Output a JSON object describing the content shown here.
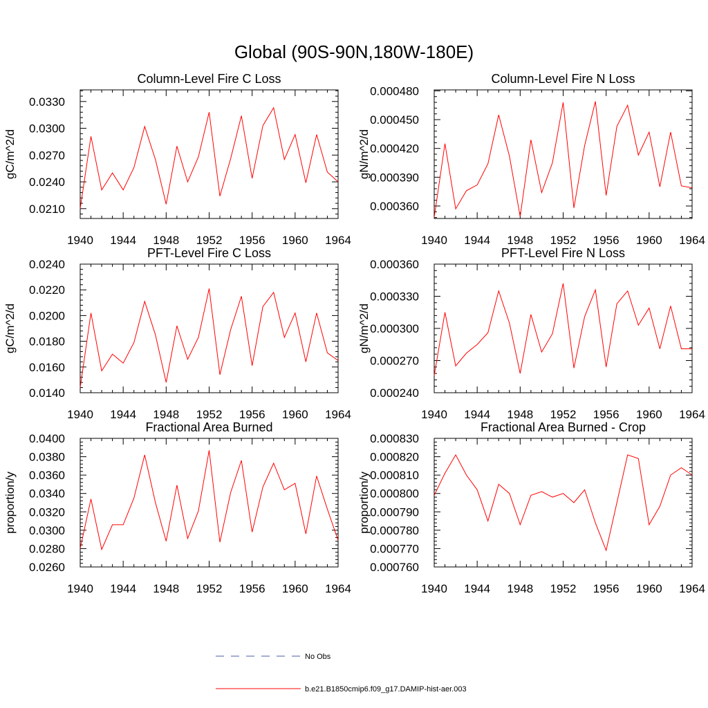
{
  "figure": {
    "title": "Global (90S-90N,180W-180E)"
  },
  "legend": {
    "entries": [
      {
        "label": "No Obs",
        "color": "#4a5ba8",
        "style": "dashed"
      },
      {
        "label": "b.e21.B1850cmip6.f09_g17.DAMIP-hist-aer.003",
        "color": "#ff0000",
        "style": "solid"
      }
    ]
  },
  "chart_data": [
    {
      "type": "line",
      "title": "Column-Level Fire C Loss",
      "ylabel": "gC/m^2/d",
      "xlim": [
        1940,
        1964
      ],
      "ylim": [
        0.0199,
        0.0343
      ],
      "xticks": [
        1940,
        1944,
        1948,
        1952,
        1956,
        1960,
        1964
      ],
      "yticks": [
        0.021,
        0.024,
        0.027,
        0.03,
        0.033
      ],
      "ytick_labels": [
        "0.0210",
        "0.0240",
        "0.0270",
        "0.0300",
        "0.0330"
      ],
      "x": [
        1940,
        1941,
        1942,
        1943,
        1944,
        1945,
        1946,
        1947,
        1948,
        1949,
        1950,
        1951,
        1952,
        1953,
        1954,
        1955,
        1956,
        1957,
        1958,
        1959,
        1960,
        1961,
        1962,
        1963,
        1964
      ],
      "series": [
        {
          "name": "b.e21.B1850cmip6.f09_g17.DAMIP-hist-aer.003",
          "color": "#ff0000",
          "values": [
            0.021,
            0.0291,
            0.0231,
            0.025,
            0.0231,
            0.0256,
            0.0302,
            0.0265,
            0.0215,
            0.028,
            0.024,
            0.0268,
            0.0318,
            0.0224,
            0.0266,
            0.0314,
            0.0244,
            0.0303,
            0.0323,
            0.0265,
            0.0293,
            0.0239,
            0.0293,
            0.0251,
            0.024
          ]
        }
      ]
    },
    {
      "type": "line",
      "title": "Column-Level Fire N Loss",
      "ylabel": "gN/m^2/d",
      "xlim": [
        1940,
        1964
      ],
      "ylim": [
        0.000347,
        0.000481
      ],
      "xticks": [
        1940,
        1944,
        1948,
        1952,
        1956,
        1960,
        1964
      ],
      "yticks": [
        0.00036,
        0.00039,
        0.00042,
        0.00045,
        0.00048
      ],
      "ytick_labels": [
        "0.000360",
        "0.000390",
        "0.000420",
        "0.000450",
        "0.000480"
      ],
      "x": [
        1940,
        1941,
        1942,
        1943,
        1944,
        1945,
        1946,
        1947,
        1948,
        1949,
        1950,
        1951,
        1952,
        1953,
        1954,
        1955,
        1956,
        1957,
        1958,
        1959,
        1960,
        1961,
        1962,
        1963,
        1964
      ],
      "series": [
        {
          "name": "b.e21.B1850cmip6.f09_g17.DAMIP-hist-aer.003",
          "color": "#ff0000",
          "values": [
            0.000348,
            0.000425,
            0.000357,
            0.000376,
            0.000382,
            0.000404,
            0.000455,
            0.000412,
            0.000349,
            0.000429,
            0.000374,
            0.000405,
            0.000468,
            0.000358,
            0.000423,
            0.000469,
            0.000371,
            0.000443,
            0.000465,
            0.000413,
            0.000437,
            0.00038,
            0.000437,
            0.000381,
            0.000379
          ]
        }
      ]
    },
    {
      "type": "line",
      "title": "PFT-Level Fire C Loss",
      "ylabel": "gC/m^2/d",
      "xlim": [
        1940,
        1964
      ],
      "ylim": [
        0.014,
        0.024
      ],
      "xticks": [
        1940,
        1944,
        1948,
        1952,
        1956,
        1960,
        1964
      ],
      "yticks": [
        0.014,
        0.016,
        0.018,
        0.02,
        0.022,
        0.024
      ],
      "ytick_labels": [
        "0.0140",
        "0.0160",
        "0.0180",
        "0.0200",
        "0.0220",
        "0.0240"
      ],
      "x": [
        1940,
        1941,
        1942,
        1943,
        1944,
        1945,
        1946,
        1947,
        1948,
        1949,
        1950,
        1951,
        1952,
        1953,
        1954,
        1955,
        1956,
        1957,
        1958,
        1959,
        1960,
        1961,
        1962,
        1963,
        1964
      ],
      "series": [
        {
          "name": "b.e21.B1850cmip6.f09_g17.DAMIP-hist-aer.003",
          "color": "#ff0000",
          "values": [
            0.0144,
            0.0202,
            0.0157,
            0.017,
            0.0163,
            0.0179,
            0.0211,
            0.0185,
            0.0148,
            0.0192,
            0.0166,
            0.0183,
            0.0221,
            0.0154,
            0.0189,
            0.0215,
            0.0161,
            0.0207,
            0.0218,
            0.0183,
            0.0202,
            0.0164,
            0.0202,
            0.0171,
            0.0165
          ]
        }
      ]
    },
    {
      "type": "line",
      "title": "PFT-Level Fire N Loss",
      "ylabel": "gN/m^2/d",
      "xlim": [
        1940,
        1964
      ],
      "ylim": [
        0.00024,
        0.00036
      ],
      "xticks": [
        1940,
        1944,
        1948,
        1952,
        1956,
        1960,
        1964
      ],
      "yticks": [
        0.00024,
        0.00027,
        0.0003,
        0.00033,
        0.00036
      ],
      "ytick_labels": [
        "0.000240",
        "0.000270",
        "0.000300",
        "0.000330",
        "0.000360"
      ],
      "x": [
        1940,
        1941,
        1942,
        1943,
        1944,
        1945,
        1946,
        1947,
        1948,
        1949,
        1950,
        1951,
        1952,
        1953,
        1954,
        1955,
        1956,
        1957,
        1958,
        1959,
        1960,
        1961,
        1962,
        1963,
        1964
      ],
      "series": [
        {
          "name": "b.e21.B1850cmip6.f09_g17.DAMIP-hist-aer.003",
          "color": "#ff0000",
          "values": [
            0.000256,
            0.000315,
            0.000265,
            0.000277,
            0.000285,
            0.000296,
            0.000335,
            0.000305,
            0.000258,
            0.000313,
            0.000278,
            0.000295,
            0.000342,
            0.000263,
            0.000311,
            0.000336,
            0.000264,
            0.000323,
            0.000335,
            0.000303,
            0.000319,
            0.000281,
            0.000321,
            0.000281,
            0.000281
          ]
        }
      ]
    },
    {
      "type": "line",
      "title": "Fractional Area Burned",
      "ylabel": "proportion/y",
      "xlim": [
        1940,
        1964
      ],
      "ylim": [
        0.026,
        0.04
      ],
      "xticks": [
        1940,
        1944,
        1948,
        1952,
        1956,
        1960,
        1964
      ],
      "yticks": [
        0.026,
        0.028,
        0.03,
        0.032,
        0.034,
        0.036,
        0.038,
        0.04
      ],
      "ytick_labels": [
        "0.0260",
        "0.0280",
        "0.0300",
        "0.0320",
        "0.0340",
        "0.0360",
        "0.0380",
        "0.0400"
      ],
      "x": [
        1940,
        1941,
        1942,
        1943,
        1944,
        1945,
        1946,
        1947,
        1948,
        1949,
        1950,
        1951,
        1952,
        1953,
        1954,
        1955,
        1956,
        1957,
        1958,
        1959,
        1960,
        1961,
        1962,
        1963,
        1964
      ],
      "series": [
        {
          "name": "b.e21.B1850cmip6.f09_g17.DAMIP-hist-aer.003",
          "color": "#ff0000",
          "values": [
            0.028,
            0.0334,
            0.0279,
            0.0306,
            0.0306,
            0.0335,
            0.0382,
            0.033,
            0.0288,
            0.0349,
            0.0291,
            0.0321,
            0.0387,
            0.0287,
            0.0341,
            0.0376,
            0.0298,
            0.0347,
            0.0373,
            0.0344,
            0.0351,
            0.0296,
            0.0359,
            0.0323,
            0.0289
          ]
        }
      ]
    },
    {
      "type": "line",
      "title": "Fractional Area Burned - Crop",
      "ylabel": "proportion/y",
      "xlim": [
        1940,
        1964
      ],
      "ylim": [
        0.00076,
        0.00083
      ],
      "xticks": [
        1940,
        1944,
        1948,
        1952,
        1956,
        1960,
        1964
      ],
      "yticks": [
        0.00076,
        0.00077,
        0.00078,
        0.00079,
        0.0008,
        0.00081,
        0.00082,
        0.00083
      ],
      "ytick_labels": [
        "0.000760",
        "0.000770",
        "0.000780",
        "0.000790",
        "0.000800",
        "0.000810",
        "0.000820",
        "0.000830"
      ],
      "x": [
        1940,
        1941,
        1942,
        1943,
        1944,
        1945,
        1946,
        1947,
        1948,
        1949,
        1950,
        1951,
        1952,
        1953,
        1954,
        1955,
        1956,
        1957,
        1958,
        1959,
        1960,
        1961,
        1962,
        1963,
        1964
      ],
      "series": [
        {
          "name": "b.e21.B1850cmip6.f09_g17.DAMIP-hist-aer.003",
          "color": "#ff0000",
          "values": [
            0.000799,
            0.000811,
            0.000821,
            0.00081,
            0.000802,
            0.000785,
            0.000805,
            0.0008,
            0.000783,
            0.000799,
            0.000801,
            0.000798,
            0.0008,
            0.000795,
            0.000802,
            0.000784,
            0.000769,
            0.000795,
            0.000821,
            0.000819,
            0.000783,
            0.000793,
            0.00081,
            0.000814,
            0.00081
          ]
        }
      ]
    }
  ]
}
